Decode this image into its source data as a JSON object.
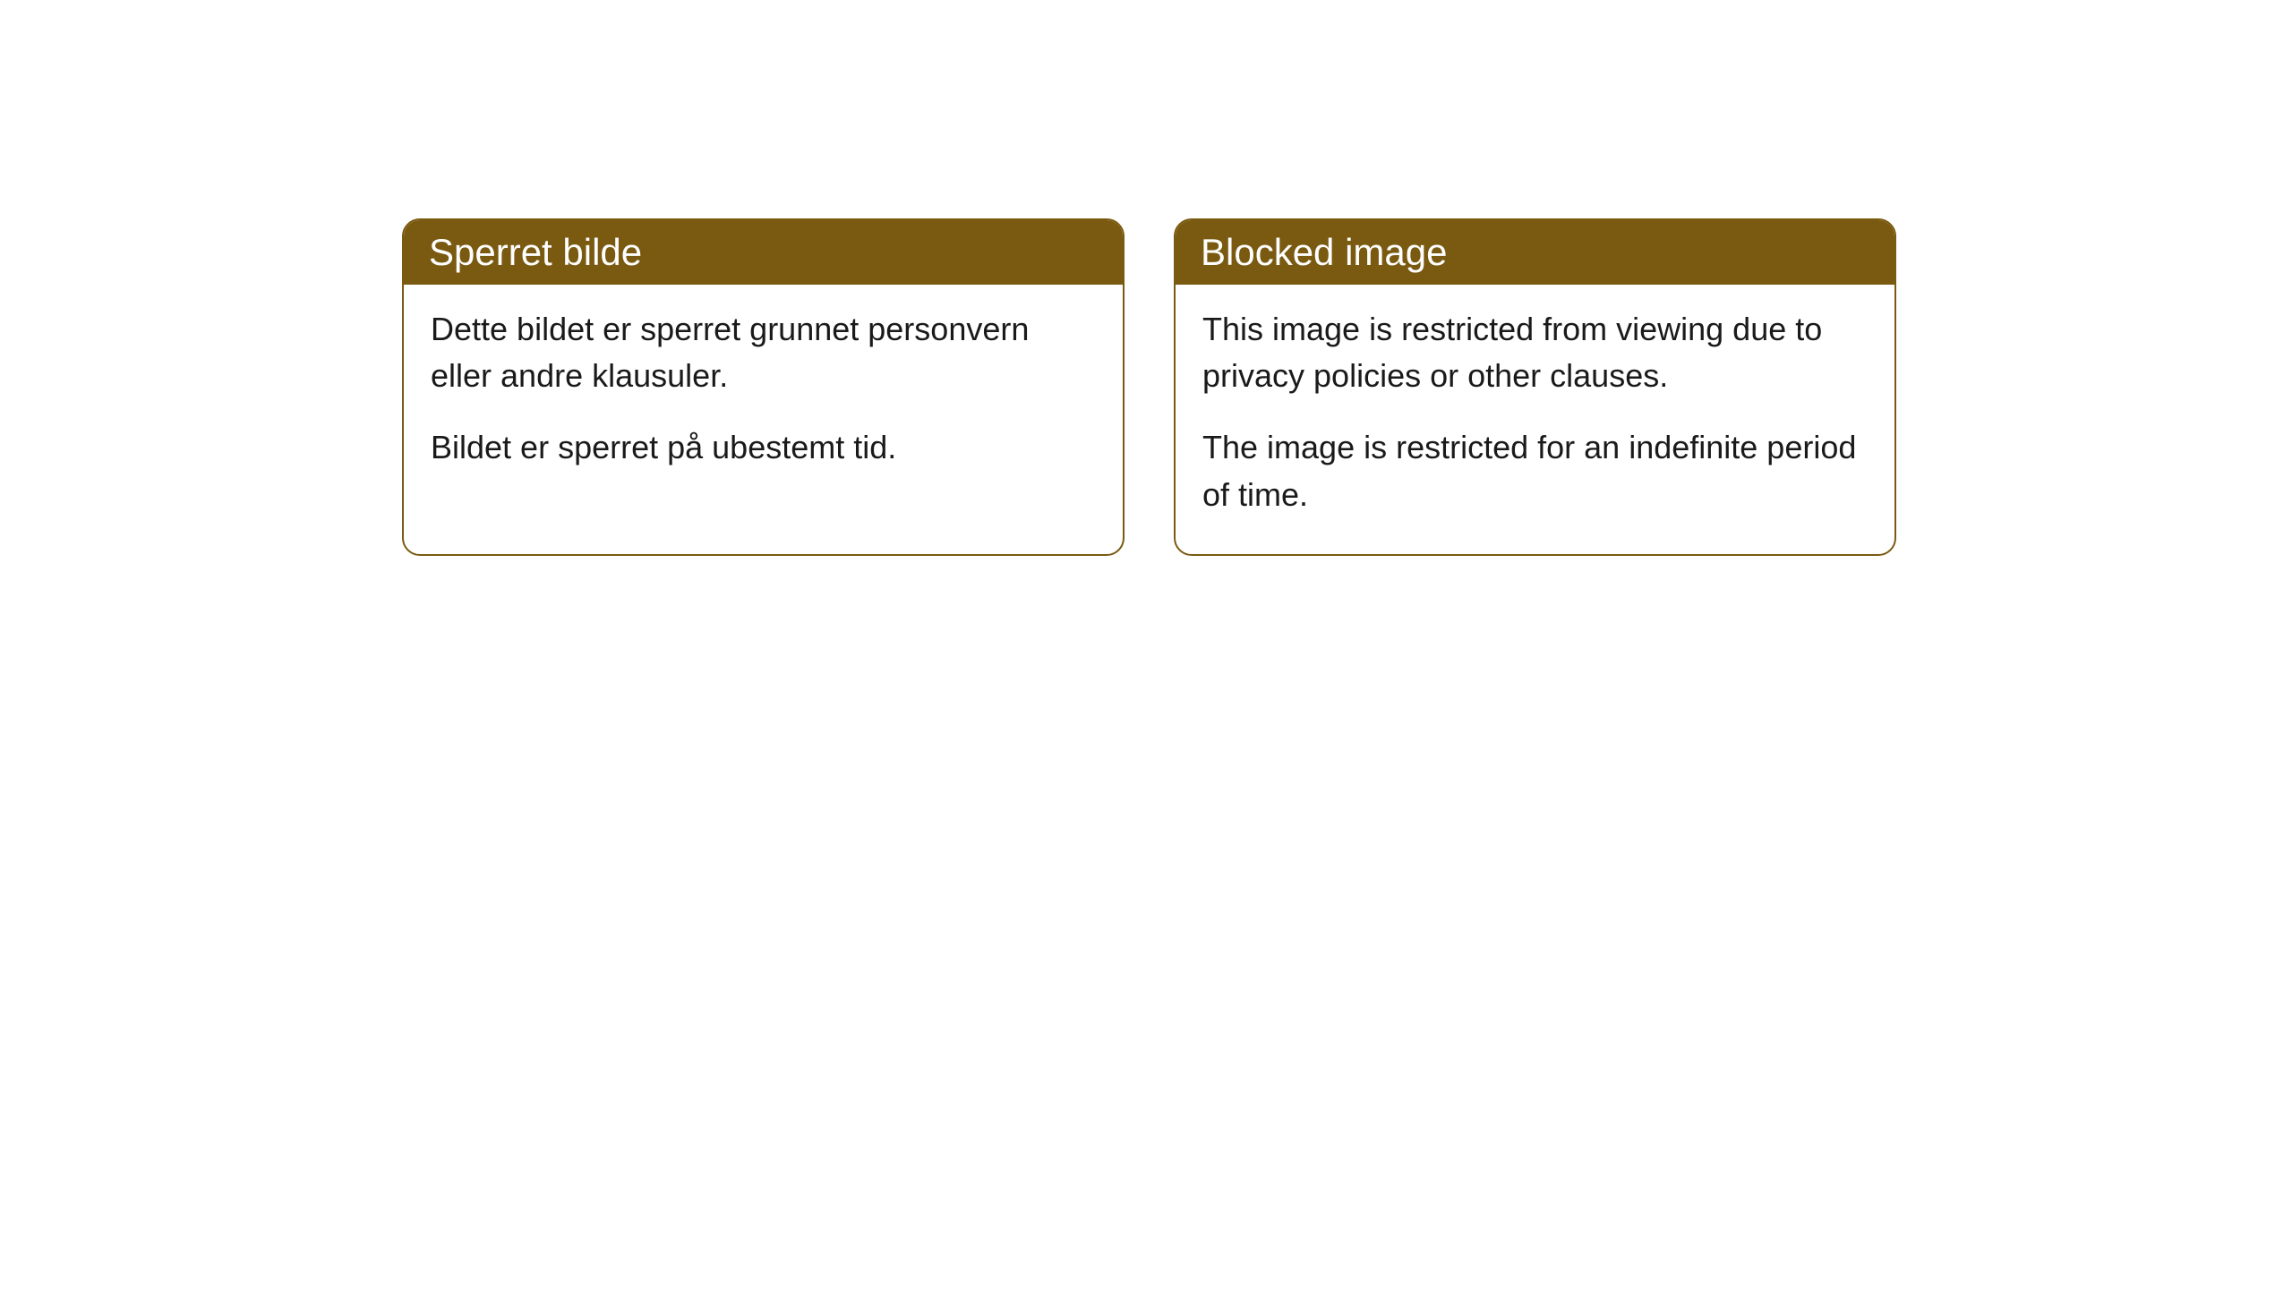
{
  "cards": [
    {
      "title": "Sperret bilde",
      "paragraph1": "Dette bildet er sperret grunnet personvern eller andre klausuler.",
      "paragraph2": "Bildet er sperret på ubestemt tid."
    },
    {
      "title": "Blocked image",
      "paragraph1": "This image is restricted from viewing due to privacy policies or other clauses.",
      "paragraph2": "The image is restricted for an indefinite period of time."
    }
  ],
  "styling": {
    "header_background": "#7a5a11",
    "header_text_color": "#ffffff",
    "border_color": "#7a5a11",
    "body_text_color": "#1a1a1a",
    "card_background": "#ffffff",
    "page_background": "#ffffff",
    "border_radius": 20,
    "header_font_size": 42,
    "body_font_size": 36
  }
}
